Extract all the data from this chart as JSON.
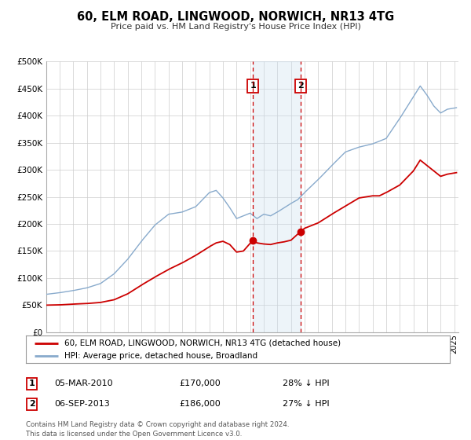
{
  "title": "60, ELM ROAD, LINGWOOD, NORWICH, NR13 4TG",
  "subtitle": "Price paid vs. HM Land Registry's House Price Index (HPI)",
  "ylabel_ticks": [
    "£0",
    "£50K",
    "£100K",
    "£150K",
    "£200K",
    "£250K",
    "£300K",
    "£350K",
    "£400K",
    "£450K",
    "£500K"
  ],
  "ytick_values": [
    0,
    50000,
    100000,
    150000,
    200000,
    250000,
    300000,
    350000,
    400000,
    450000,
    500000
  ],
  "ylim": [
    0,
    500000
  ],
  "sale_color": "#cc0000",
  "hpi_color": "#88aacc",
  "shade_color": "#cce0f0",
  "vline_color": "#cc0000",
  "background_color": "#ffffff",
  "grid_color": "#cccccc",
  "legend_line1": "60, ELM ROAD, LINGWOOD, NORWICH, NR13 4TG (detached house)",
  "legend_line2": "HPI: Average price, detached house, Broadland",
  "footer1": "Contains HM Land Registry data © Crown copyright and database right 2024.",
  "footer2": "This data is licensed under the Open Government Licence v3.0.",
  "table_row1_date": "05-MAR-2010",
  "table_row1_price": "£170,000",
  "table_row1_pct": "28% ↓ HPI",
  "table_row2_date": "06-SEP-2013",
  "table_row2_price": "£186,000",
  "table_row2_pct": "27% ↓ HPI",
  "sale1_year": 2010.2,
  "sale2_year": 2013.7,
  "sale1_price": 170000,
  "sale2_price": 186000,
  "hpi_anchors": {
    "1995.0": 70000,
    "1996.0": 73000,
    "1997.0": 77000,
    "1998.0": 82000,
    "1999.0": 90000,
    "2000.0": 108000,
    "2001.0": 135000,
    "2002.0": 168000,
    "2003.0": 198000,
    "2004.0": 218000,
    "2005.0": 222000,
    "2006.0": 232000,
    "2007.0": 258000,
    "2007.5": 262000,
    "2008.0": 248000,
    "2008.5": 230000,
    "2009.0": 210000,
    "2009.5": 215000,
    "2010.0": 220000,
    "2010.5": 210000,
    "2011.0": 218000,
    "2011.5": 215000,
    "2012.0": 222000,
    "2013.0": 238000,
    "2013.5": 245000,
    "2014.0": 258000,
    "2015.0": 282000,
    "2016.0": 308000,
    "2017.0": 333000,
    "2018.0": 342000,
    "2019.0": 348000,
    "2020.0": 358000,
    "2021.0": 395000,
    "2022.0": 435000,
    "2022.5": 455000,
    "2023.0": 438000,
    "2023.5": 418000,
    "2024.0": 405000,
    "2024.5": 412000,
    "2025.2": 415000
  },
  "sale_anchors": {
    "1995.0": 50000,
    "1996.0": 50500,
    "1997.0": 52000,
    "1998.0": 53000,
    "1999.0": 55000,
    "2000.0": 60000,
    "2001.0": 71000,
    "2002.0": 87000,
    "2003.0": 102000,
    "2004.0": 116000,
    "2005.0": 128000,
    "2006.0": 142000,
    "2007.0": 158000,
    "2007.5": 165000,
    "2008.0": 168000,
    "2008.5": 162000,
    "2009.0": 148000,
    "2009.5": 150000,
    "2010.2": 170000,
    "2010.5": 165000,
    "2011.0": 163000,
    "2011.5": 162000,
    "2012.0": 165000,
    "2012.5": 167000,
    "2013.0": 170000,
    "2013.7": 186000,
    "2014.0": 192000,
    "2015.0": 202000,
    "2016.0": 218000,
    "2017.0": 233000,
    "2018.0": 248000,
    "2019.0": 252000,
    "2019.5": 252000,
    "2020.0": 258000,
    "2021.0": 272000,
    "2022.0": 298000,
    "2022.5": 318000,
    "2023.0": 308000,
    "2023.5": 298000,
    "2024.0": 288000,
    "2024.5": 292000,
    "2025.2": 295000
  }
}
